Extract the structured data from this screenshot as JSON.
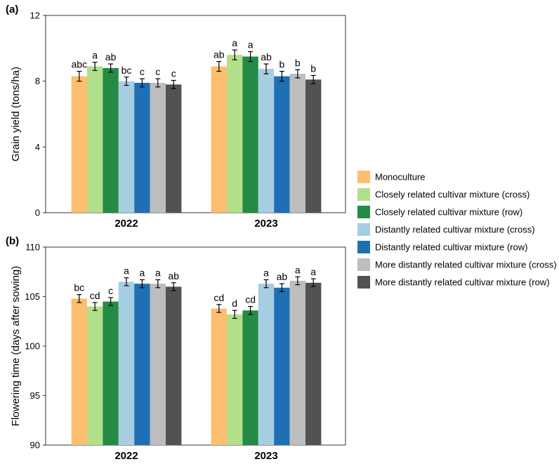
{
  "chart_data": [
    {
      "type": "bar",
      "panel_label": "(a)",
      "ylabel": "Grain yield (tons/ha)",
      "ylim": [
        0,
        12
      ],
      "yticks": [
        0,
        4,
        8,
        12
      ],
      "categories": [
        "2022",
        "2023"
      ],
      "grid": false,
      "series": [
        {
          "name": "Monoculture",
          "color": "#FDBF6F",
          "values": [
            8.3,
            8.9
          ],
          "errors": [
            0.3,
            0.3
          ],
          "letters": [
            "abc",
            "ab"
          ]
        },
        {
          "name": "Closely related cultivar mixture (cross)",
          "color": "#B2DF8A",
          "values": [
            8.9,
            9.6
          ],
          "errors": [
            0.25,
            0.3
          ],
          "letters": [
            "a",
            "a"
          ]
        },
        {
          "name": "Closely related cultivar mixture (row)",
          "color": "#238B45",
          "values": [
            8.8,
            9.5
          ],
          "errors": [
            0.25,
            0.3
          ],
          "letters": [
            "ab",
            "a"
          ]
        },
        {
          "name": "Distantly related cultivar mixture (cross)",
          "color": "#A6CEE3",
          "values": [
            8.0,
            8.75
          ],
          "errors": [
            0.25,
            0.3
          ],
          "letters": [
            "bc",
            "ab"
          ]
        },
        {
          "name": "Distantly related cultivar mixture (row)",
          "color": "#1F6FB4",
          "values": [
            7.9,
            8.3
          ],
          "errors": [
            0.25,
            0.3
          ],
          "letters": [
            "c",
            "b"
          ]
        },
        {
          "name": "More distantly related cultivar mixture (cross)",
          "color": "#BDBDBD",
          "values": [
            7.9,
            8.45
          ],
          "errors": [
            0.25,
            0.25
          ],
          "letters": [
            "c",
            "b"
          ]
        },
        {
          "name": "More distantly related cultivar mixture (row)",
          "color": "#525252",
          "values": [
            7.8,
            8.1
          ],
          "errors": [
            0.25,
            0.25
          ],
          "letters": [
            "c",
            "b"
          ]
        }
      ]
    },
    {
      "type": "bar",
      "panel_label": "(b)",
      "ylabel": "Flowering time (days after sowing)",
      "ylim": [
        90,
        110
      ],
      "yticks": [
        90,
        95,
        100,
        105,
        110
      ],
      "categories": [
        "2022",
        "2023"
      ],
      "grid": false,
      "series": [
        {
          "name": "Monoculture",
          "color": "#FDBF6F",
          "values": [
            104.8,
            103.8
          ],
          "errors": [
            0.4,
            0.4
          ],
          "letters": [
            "bc",
            "cd"
          ]
        },
        {
          "name": "Closely related cultivar mixture (cross)",
          "color": "#B2DF8A",
          "values": [
            104.0,
            103.2
          ],
          "errors": [
            0.4,
            0.4
          ],
          "letters": [
            "cd",
            "d"
          ]
        },
        {
          "name": "Closely related cultivar mixture (row)",
          "color": "#238B45",
          "values": [
            104.5,
            103.6
          ],
          "errors": [
            0.4,
            0.4
          ],
          "letters": [
            "c",
            "cd"
          ]
        },
        {
          "name": "Distantly related cultivar mixture (cross)",
          "color": "#A6CEE3",
          "values": [
            106.5,
            106.3
          ],
          "errors": [
            0.4,
            0.4
          ],
          "letters": [
            "a",
            "a"
          ]
        },
        {
          "name": "Distantly related cultivar mixture (row)",
          "color": "#1F6FB4",
          "values": [
            106.3,
            105.9
          ],
          "errors": [
            0.4,
            0.4
          ],
          "letters": [
            "a",
            "ab"
          ]
        },
        {
          "name": "More distantly related cultivar mixture (cross)",
          "color": "#BDBDBD",
          "values": [
            106.3,
            106.6
          ],
          "errors": [
            0.4,
            0.4
          ],
          "letters": [
            "a",
            "a"
          ]
        },
        {
          "name": "More distantly related cultivar mixture (row)",
          "color": "#525252",
          "values": [
            106.0,
            106.4
          ],
          "errors": [
            0.4,
            0.4
          ],
          "letters": [
            "ab",
            "a"
          ]
        }
      ]
    }
  ],
  "legend": {
    "placement": "right",
    "items": [
      {
        "label": "Monoculture",
        "color": "#FDBF6F"
      },
      {
        "label": "Closely related cultivar mixture (cross)",
        "color": "#B2DF8A"
      },
      {
        "label": "Closely related cultivar mixture (row)",
        "color": "#238B45"
      },
      {
        "label": "Distantly related cultivar mixture (cross)",
        "color": "#A6CEE3"
      },
      {
        "label": "Distantly related cultivar mixture (row)",
        "color": "#1F6FB4"
      },
      {
        "label": "More distantly related cultivar mixture (cross)",
        "color": "#BDBDBD"
      },
      {
        "label": "More distantly related cultivar mixture (row)",
        "color": "#525252"
      }
    ]
  }
}
